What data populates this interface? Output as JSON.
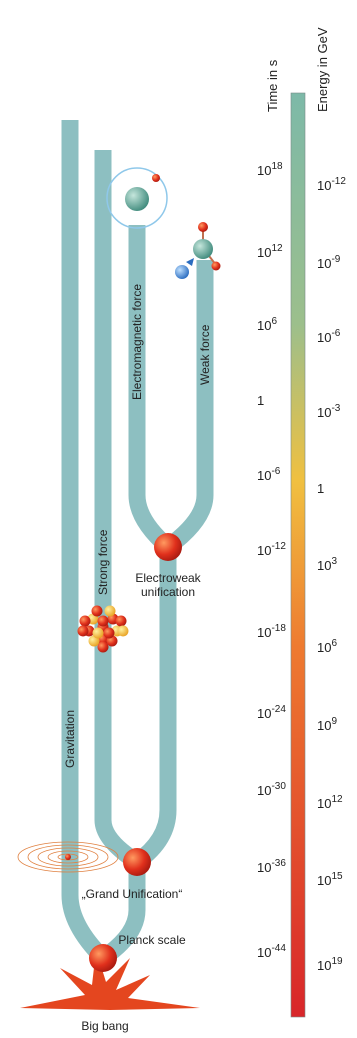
{
  "axes": {
    "time_title": "Time in s",
    "energy_title": "Energy in GeV",
    "time_labels": [
      {
        "base": "10",
        "exponent": "18"
      },
      {
        "base": "10",
        "exponent": "12"
      },
      {
        "base": "10",
        "exponent": "6"
      },
      {
        "base": "1"
      },
      {
        "base": "10",
        "exponent": "-6"
      },
      {
        "base": "10",
        "exponent": "-12"
      },
      {
        "base": "10",
        "exponent": "-18"
      },
      {
        "base": "10",
        "exponent": "-24"
      },
      {
        "base": "10",
        "exponent": "-30"
      },
      {
        "base": "10",
        "exponent": "-36"
      },
      {
        "base": "10",
        "exponent": "-44"
      }
    ],
    "energy_labels": [
      {
        "base": "10",
        "exponent": "-12"
      },
      {
        "base": "10",
        "exponent": "-9"
      },
      {
        "base": "10",
        "exponent": "-6"
      },
      {
        "base": "10",
        "exponent": "-3"
      },
      {
        "base": "1"
      },
      {
        "base": "10",
        "exponent": "3"
      },
      {
        "base": "10",
        "exponent": "6"
      },
      {
        "base": "10",
        "exponent": "9"
      },
      {
        "base": "10",
        "exponent": "12"
      },
      {
        "base": "10",
        "exponent": "15"
      },
      {
        "base": "10",
        "exponent": "19"
      }
    ]
  },
  "branches": {
    "electromagnetic": "Electromagnetic force",
    "weak": "Weak force",
    "strong": "Strong force",
    "gravitation": "Gravitation"
  },
  "events": {
    "electroweak": [
      "Electroweak",
      "unification"
    ],
    "grand_unification": "„Grand Unification“",
    "planck": "Planck scale",
    "big_bang": "Big bang"
  }
}
